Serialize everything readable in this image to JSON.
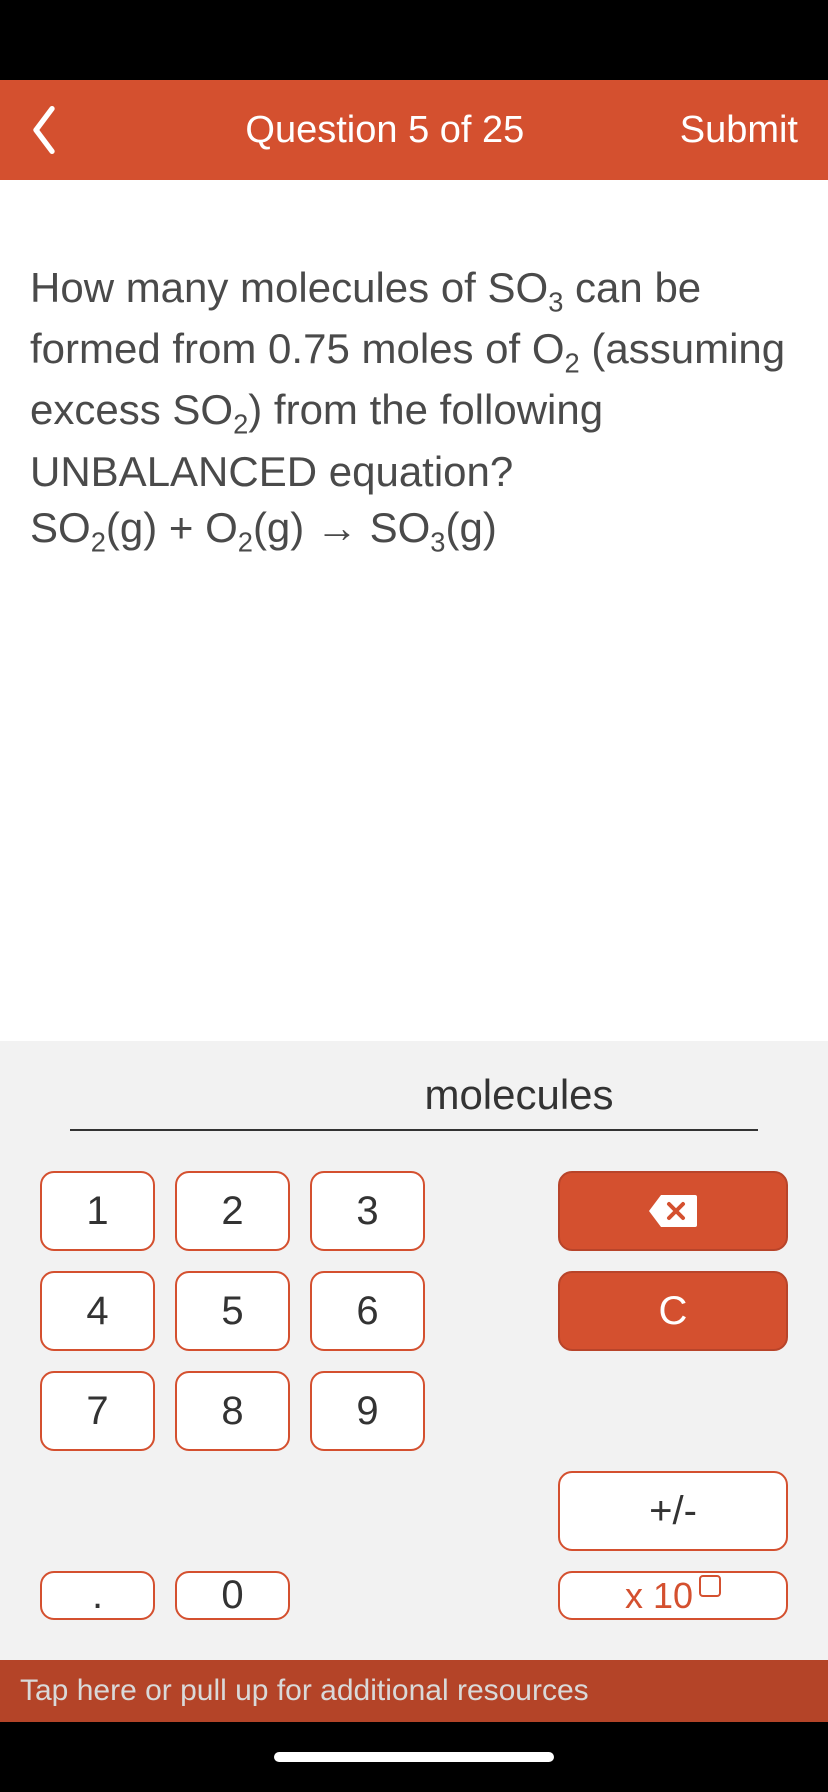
{
  "header": {
    "title": "Question 5 of 25",
    "submit_label": "Submit"
  },
  "question": {
    "text_html": "How many molecules of SO<sub>3</sub> can be formed from 0.75 moles of O<sub>2</sub> (assuming excess SO<sub>2</sub>) from the following UNBALANCED equation?<br>SO<sub>2</sub>(g) + O<sub>2</sub>(g) → SO<sub>3</sub>(g)"
  },
  "answer": {
    "value": "",
    "unit": "molecules"
  },
  "keypad": {
    "k1": "1",
    "k2": "2",
    "k3": "3",
    "k4": "4",
    "k5": "5",
    "k6": "6",
    "k7": "7",
    "k8": "8",
    "k9": "9",
    "k0": "0",
    "sign": "+/-",
    "dot": ".",
    "clear": "C",
    "exp_prefix": "x 10"
  },
  "footer": {
    "text": "Tap here or pull up for additional resources"
  },
  "colors": {
    "accent": "#d4502f",
    "background": "#ffffff",
    "keypad_bg": "#f2f2f2",
    "text": "#4a4a4a"
  }
}
